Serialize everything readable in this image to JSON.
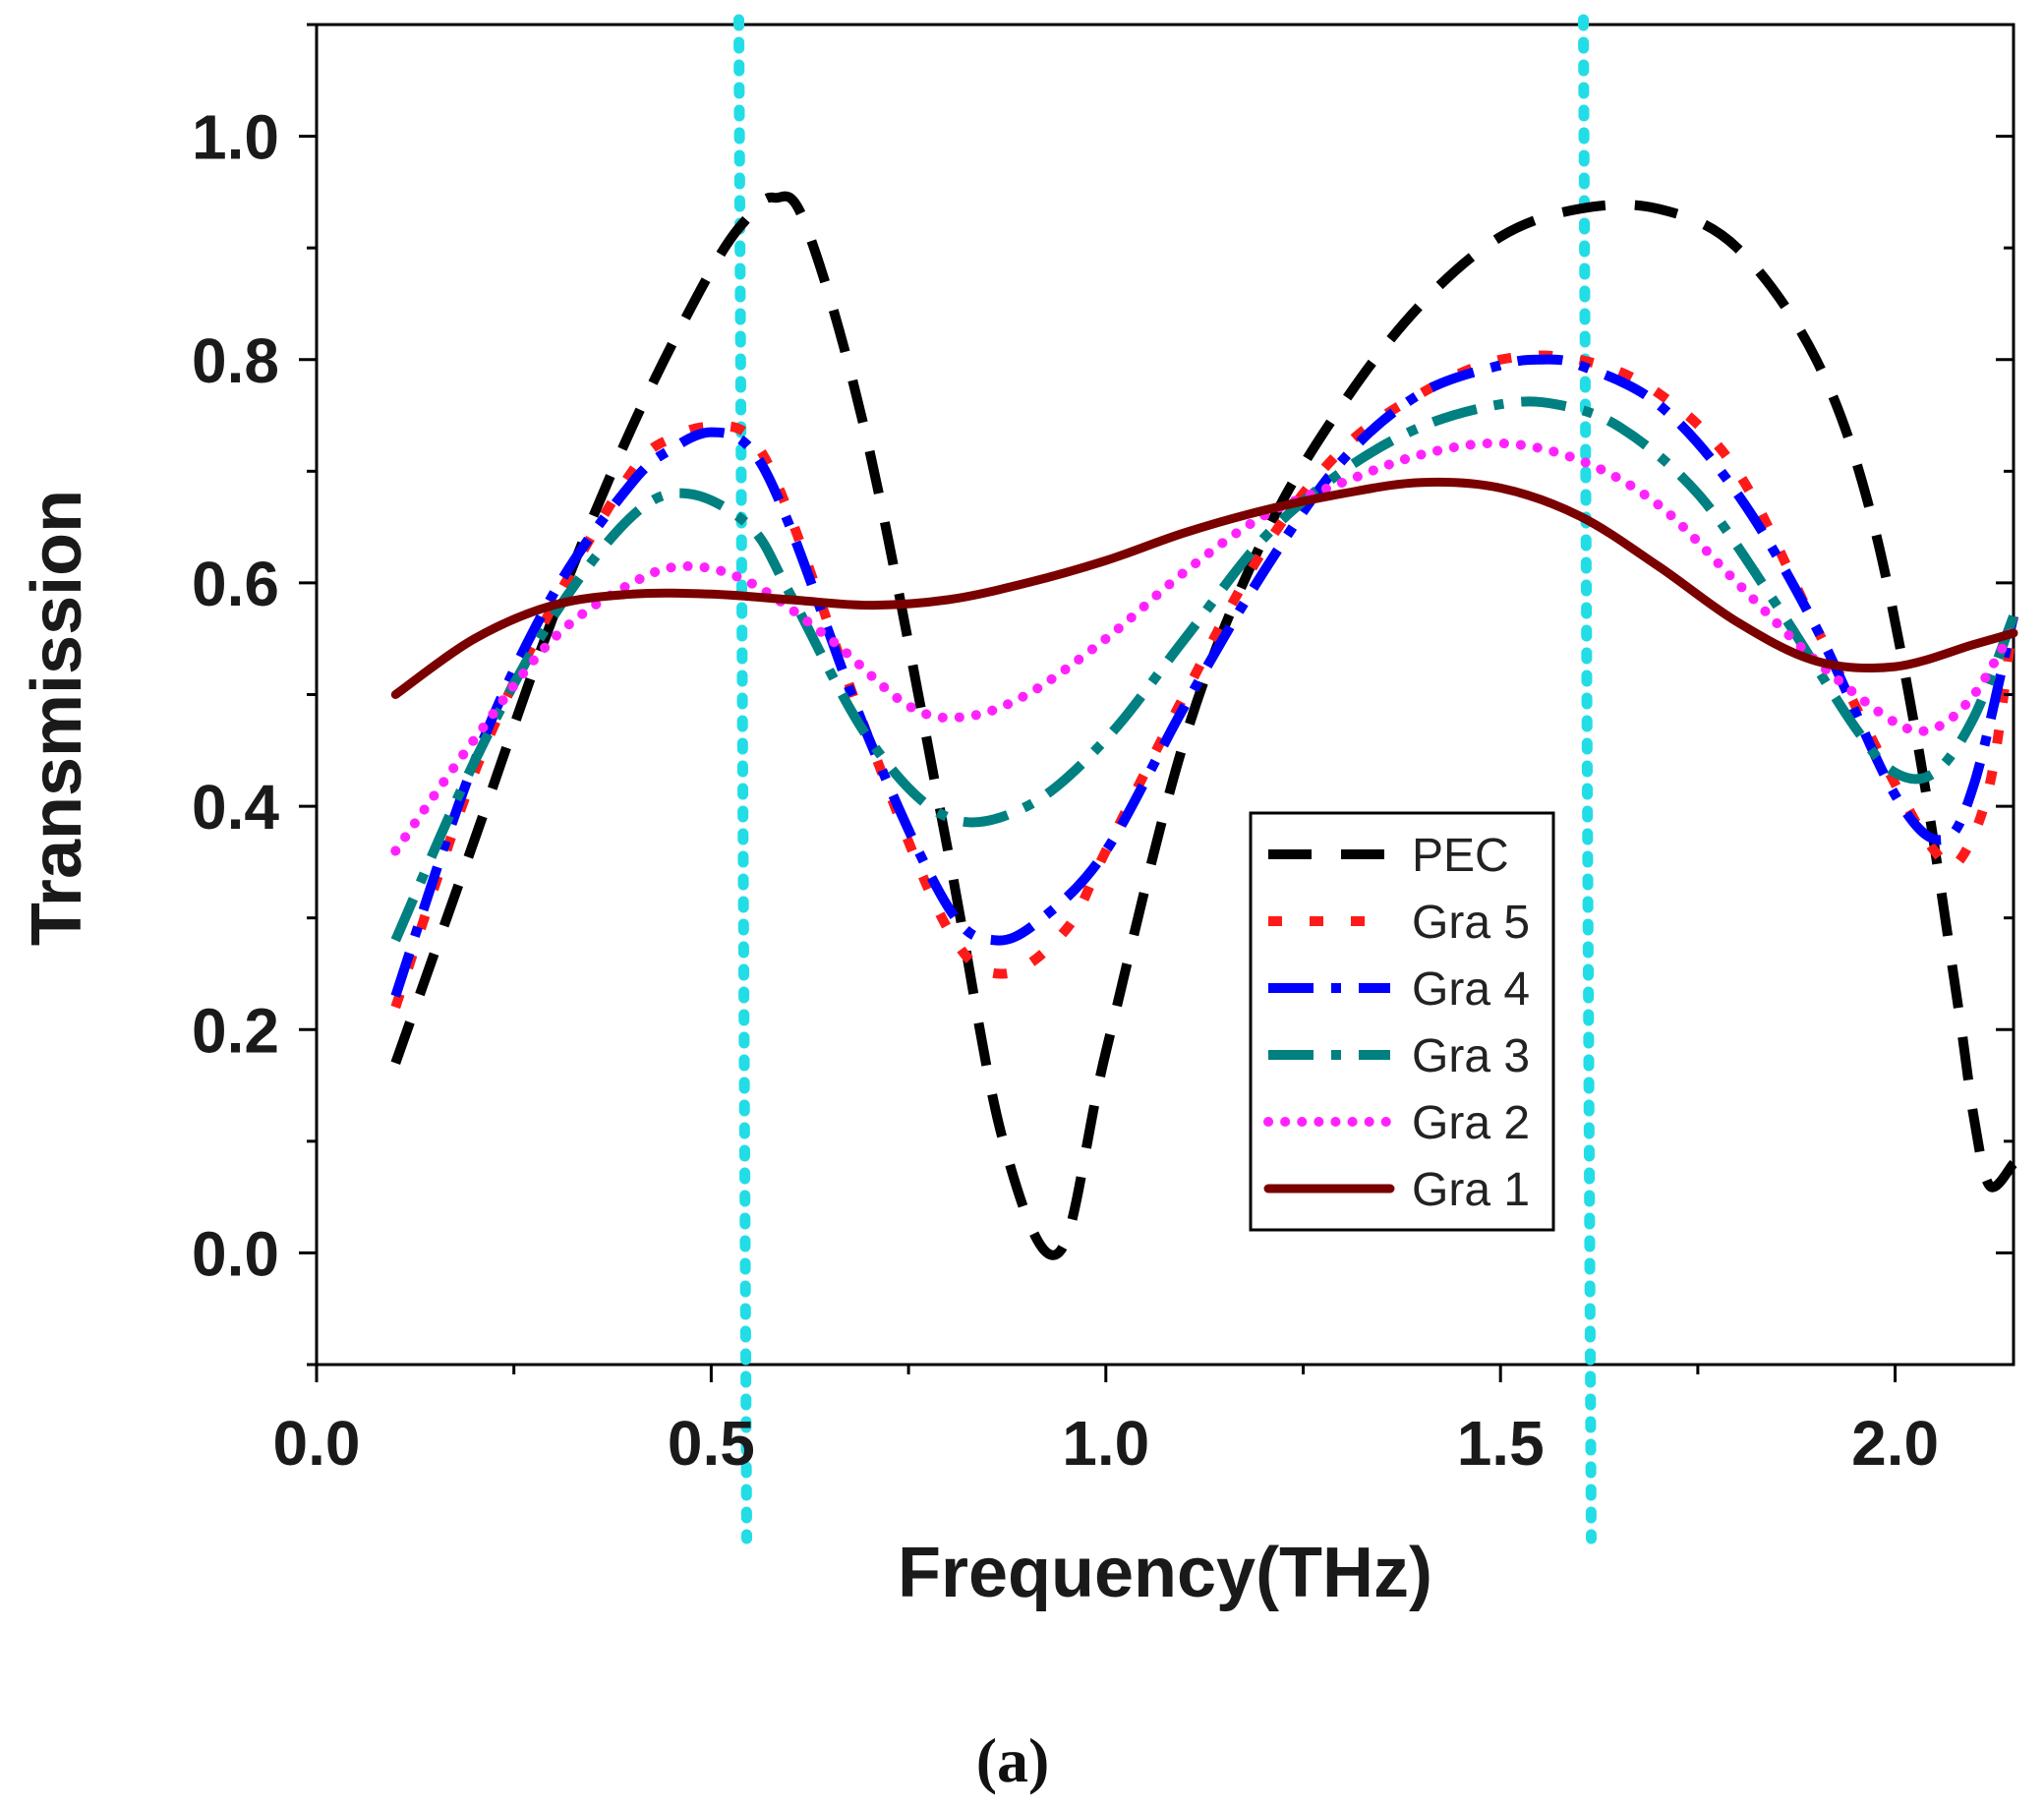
{
  "chart_data": {
    "type": "line",
    "xlabel": "Frequency(THz)",
    "ylabel": "Transmission",
    "xlim": [
      0.0,
      2.15
    ],
    "ylim": [
      -0.1,
      1.1
    ],
    "x_ticks": [
      "0.0",
      "0.5",
      "1.0",
      "1.5",
      "2.0"
    ],
    "y_ticks": [
      "0.0",
      "0.2",
      "0.4",
      "0.6",
      "0.8",
      "1.0"
    ],
    "x_tick_values": [
      0.0,
      0.5,
      1.0,
      1.5,
      2.0
    ],
    "y_tick_values": [
      0.0,
      0.2,
      0.4,
      0.6,
      0.8,
      1.0
    ],
    "reference_lines": [
      {
        "x": 0.54,
        "color": "#22dde6"
      },
      {
        "x": 1.61,
        "color": "#22dde6"
      }
    ],
    "legend_position": "center-right",
    "series": [
      {
        "name": "PEC",
        "color": "#000000",
        "style": "dash",
        "x": [
          0.1,
          0.2,
          0.3,
          0.4,
          0.5,
          0.55,
          0.58,
          0.62,
          0.7,
          0.8,
          0.87,
          0.94,
          1.0,
          1.1,
          1.2,
          1.3,
          1.4,
          1.5,
          1.6,
          1.7,
          1.8,
          1.9,
          1.97,
          2.03,
          2.08,
          2.1,
          2.12,
          2.15
        ],
        "y": [
          0.17,
          0.37,
          0.57,
          0.74,
          0.88,
          0.93,
          0.945,
          0.92,
          0.72,
          0.36,
          0.1,
          0.0,
          0.18,
          0.46,
          0.64,
          0.76,
          0.85,
          0.91,
          0.935,
          0.935,
          0.9,
          0.8,
          0.66,
          0.45,
          0.22,
          0.12,
          0.06,
          0.08
        ]
      },
      {
        "name": "Gra 5",
        "color": "#ff1a1a",
        "style": "short-dash",
        "x": [
          0.1,
          0.2,
          0.3,
          0.4,
          0.45,
          0.5,
          0.55,
          0.6,
          0.7,
          0.8,
          0.87,
          0.95,
          1.0,
          1.1,
          1.2,
          1.3,
          1.4,
          1.5,
          1.6,
          1.7,
          1.8,
          1.9,
          2.0,
          2.05,
          2.08,
          2.12,
          2.15
        ],
        "y": [
          0.22,
          0.43,
          0.58,
          0.7,
          0.73,
          0.74,
          0.73,
          0.66,
          0.46,
          0.29,
          0.25,
          0.29,
          0.36,
          0.5,
          0.63,
          0.72,
          0.77,
          0.8,
          0.8,
          0.77,
          0.7,
          0.56,
          0.42,
          0.36,
          0.35,
          0.42,
          0.57
        ]
      },
      {
        "name": "Gra 4",
        "color": "#0000ff",
        "style": "dash-dot",
        "x": [
          0.1,
          0.2,
          0.3,
          0.4,
          0.45,
          0.5,
          0.55,
          0.6,
          0.7,
          0.8,
          0.86,
          0.92,
          1.0,
          1.1,
          1.2,
          1.3,
          1.4,
          1.5,
          1.55,
          1.6,
          1.7,
          1.8,
          1.9,
          2.0,
          2.06,
          2.1,
          2.15
        ],
        "y": [
          0.23,
          0.44,
          0.59,
          0.69,
          0.72,
          0.735,
          0.72,
          0.65,
          0.46,
          0.31,
          0.28,
          0.3,
          0.36,
          0.49,
          0.61,
          0.71,
          0.77,
          0.795,
          0.8,
          0.795,
          0.76,
          0.68,
          0.56,
          0.41,
          0.37,
          0.42,
          0.57
        ]
      },
      {
        "name": "Gra 3",
        "color": "#008080",
        "style": "dash-dot",
        "x": [
          0.1,
          0.2,
          0.3,
          0.4,
          0.47,
          0.55,
          0.6,
          0.7,
          0.8,
          0.9,
          1.0,
          1.1,
          1.2,
          1.3,
          1.4,
          1.5,
          1.57,
          1.65,
          1.75,
          1.85,
          1.95,
          2.0,
          2.05,
          2.1,
          2.15
        ],
        "y": [
          0.28,
          0.44,
          0.57,
          0.66,
          0.68,
          0.65,
          0.59,
          0.46,
          0.39,
          0.4,
          0.46,
          0.55,
          0.64,
          0.7,
          0.74,
          0.76,
          0.76,
          0.74,
          0.68,
          0.58,
          0.47,
          0.43,
          0.43,
          0.48,
          0.57
        ]
      },
      {
        "name": "Gra 2",
        "color": "#ff22ff",
        "style": "dot",
        "x": [
          0.1,
          0.2,
          0.3,
          0.4,
          0.47,
          0.55,
          0.65,
          0.75,
          0.82,
          0.9,
          1.0,
          1.1,
          1.2,
          1.3,
          1.4,
          1.5,
          1.6,
          1.7,
          1.8,
          1.9,
          2.0,
          2.05,
          2.1,
          2.15
        ],
        "y": [
          0.36,
          0.46,
          0.55,
          0.6,
          0.615,
          0.6,
          0.55,
          0.49,
          0.48,
          0.5,
          0.55,
          0.61,
          0.66,
          0.69,
          0.715,
          0.725,
          0.71,
          0.67,
          0.6,
          0.53,
          0.475,
          0.47,
          0.5,
          0.56
        ]
      },
      {
        "name": "Gra 1",
        "color": "#7a0000",
        "style": "solid",
        "x": [
          0.1,
          0.2,
          0.3,
          0.4,
          0.5,
          0.6,
          0.7,
          0.8,
          0.9,
          1.0,
          1.1,
          1.2,
          1.3,
          1.4,
          1.5,
          1.6,
          1.7,
          1.8,
          1.9,
          2.0,
          2.1,
          2.15
        ],
        "y": [
          0.5,
          0.55,
          0.58,
          0.59,
          0.59,
          0.585,
          0.58,
          0.585,
          0.6,
          0.62,
          0.645,
          0.665,
          0.68,
          0.69,
          0.685,
          0.66,
          0.615,
          0.565,
          0.53,
          0.525,
          0.545,
          0.555
        ]
      }
    ]
  },
  "panel_label": "(a)"
}
